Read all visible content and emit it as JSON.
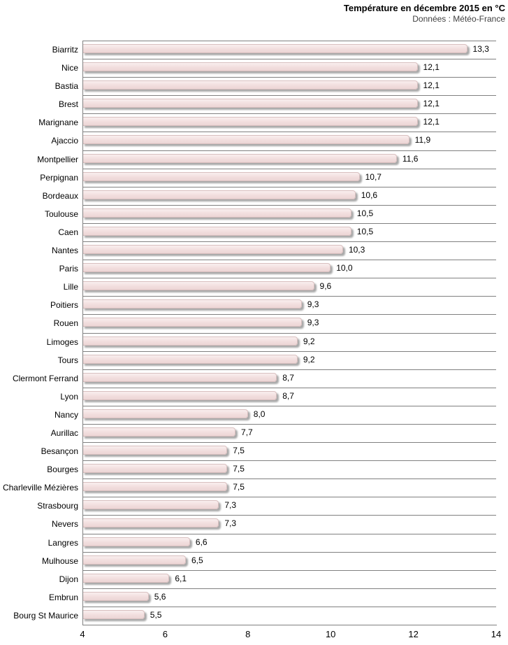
{
  "header": {
    "title": "Température en décembre 2015 en °C",
    "subtitle": "Données : Météo-France"
  },
  "chart_data": {
    "type": "bar",
    "orientation": "horizontal",
    "title": "Température en décembre 2015 en °C",
    "subtitle": "Données : Météo-France",
    "categories": [
      "Biarritz",
      "Nice",
      "Bastia",
      "Brest",
      "Marignane",
      "Ajaccio",
      "Montpellier",
      "Perpignan",
      "Bordeaux",
      "Toulouse",
      "Caen",
      "Nantes",
      "Paris",
      "Lille",
      "Poitiers",
      "Rouen",
      "Limoges",
      "Tours",
      "Clermont Ferrand",
      "Lyon",
      "Nancy",
      "Aurillac",
      "Besançon",
      "Bourges",
      "Charleville Mézières",
      "Strasbourg",
      "Nevers",
      "Langres",
      "Mulhouse",
      "Dijon",
      "Embrun",
      "Bourg St Maurice"
    ],
    "values": [
      13.3,
      12.1,
      12.1,
      12.1,
      12.1,
      11.9,
      11.6,
      10.7,
      10.6,
      10.5,
      10.5,
      10.3,
      10.0,
      9.6,
      9.3,
      9.3,
      9.2,
      9.2,
      8.7,
      8.7,
      8.0,
      7.7,
      7.5,
      7.5,
      7.5,
      7.3,
      7.3,
      6.6,
      6.5,
      6.1,
      5.6,
      5.5
    ],
    "xlim": [
      4,
      14
    ],
    "xticks": [
      4,
      6,
      8,
      10,
      12,
      14
    ],
    "decimal_separator": ",",
    "value_labels_shown": true,
    "grid": "horizontal-category-separators",
    "legend": "none",
    "colors": {
      "bar_fill": "#f2dede",
      "bar_fill_light": "#f9eeee",
      "bar_fill_dark": "#ecd5d5",
      "bar_border": "#d8bfbf",
      "bar_shadow": "#a8a8a8",
      "grid_line": "#808080",
      "axis_line": "#808080",
      "label_text": "#000000",
      "subtitle_text": "#404040"
    }
  }
}
